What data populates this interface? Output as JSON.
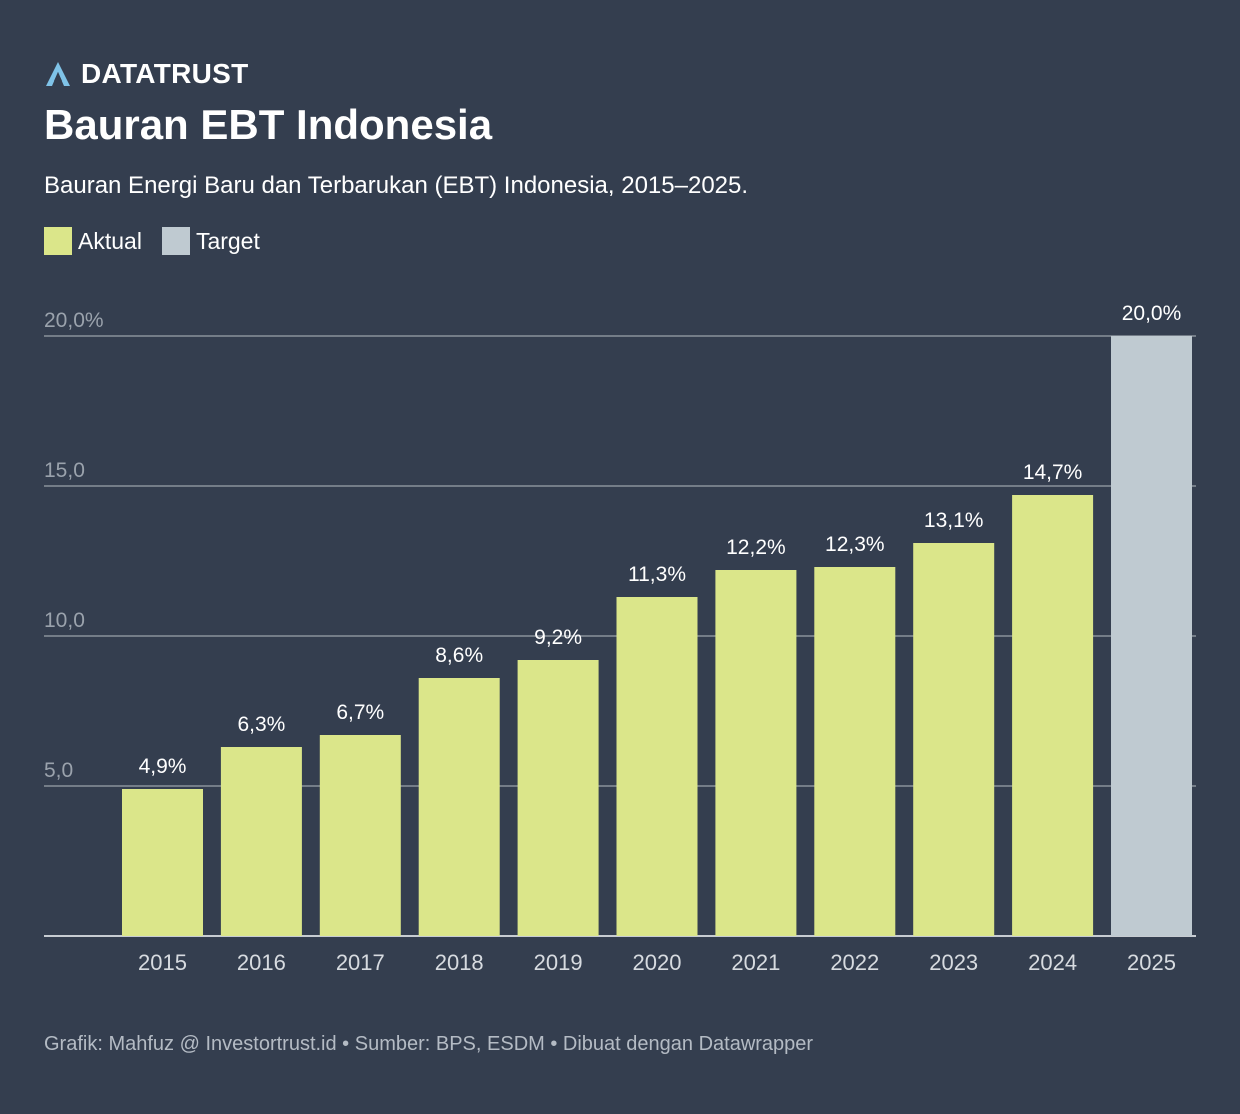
{
  "brand": {
    "name": "DATATRUST",
    "icon": "datatrust-logo-icon"
  },
  "header": {
    "title": "Bauran EBT Indonesia",
    "subtitle": "Bauran Energi Baru dan Terbarukan (EBT) Indonesia, 2015–2025."
  },
  "legend": {
    "items": [
      {
        "label": "Aktual",
        "color": "#dbe68a"
      },
      {
        "label": "Target",
        "color": "#bfcad1"
      }
    ]
  },
  "chart_data": {
    "type": "bar",
    "title": "Bauran EBT Indonesia",
    "subtitle": "Bauran Energi Baru dan Terbarukan (EBT) Indonesia, 2015–2025.",
    "xlabel": "",
    "ylabel": "",
    "ylim": [
      0,
      20
    ],
    "yticks": [
      5,
      10,
      15,
      20
    ],
    "ytick_labels": [
      "5,0",
      "10,0",
      "15,0",
      "20,0%"
    ],
    "grid": true,
    "legend_position": "top-left",
    "categories": [
      "2015",
      "2016",
      "2017",
      "2018",
      "2019",
      "2020",
      "2021",
      "2022",
      "2023",
      "2024",
      "2025"
    ],
    "values": [
      4.9,
      6.3,
      6.7,
      8.6,
      9.2,
      11.3,
      12.2,
      12.3,
      13.1,
      14.7,
      20.0
    ],
    "value_labels": [
      "4,9%",
      "6,3%",
      "6,7%",
      "8,6%",
      "9,2%",
      "11,3%",
      "12,2%",
      "12,3%",
      "13,1%",
      "14,7%",
      "20,0%"
    ],
    "series_kind": [
      "Aktual",
      "Aktual",
      "Aktual",
      "Aktual",
      "Aktual",
      "Aktual",
      "Aktual",
      "Aktual",
      "Aktual",
      "Aktual",
      "Target"
    ],
    "colors": {
      "Aktual": "#dbe68a",
      "Target": "#bfcad1",
      "grid": "#8a929c",
      "axis": "#c7ccd2",
      "tick_text": "#9aa2ac",
      "label_text": "#ffffff"
    }
  },
  "footer": {
    "text": "Grafik: Mahfuz @ Investortrust.id • Sumber: BPS, ESDM • Dibuat dengan Datawrapper"
  },
  "colors": {
    "background": "#343e4f"
  }
}
